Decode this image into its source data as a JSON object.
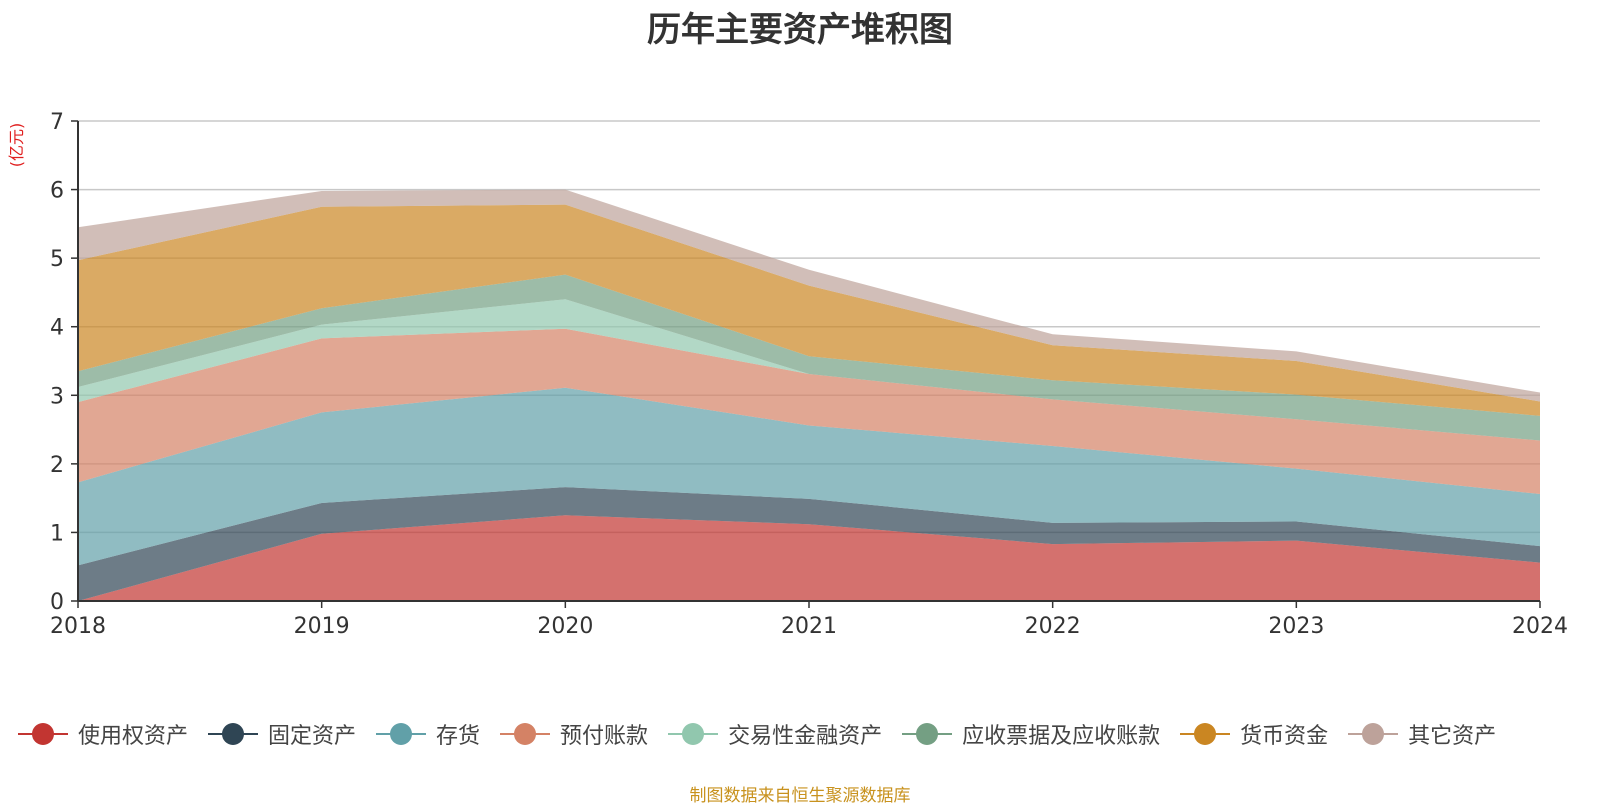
{
  "chart_data": {
    "type": "area",
    "stacked": true,
    "title": "历年主要资产堆积图",
    "unit_label": "(亿元)",
    "x": [
      "2018",
      "2019",
      "2020",
      "2021",
      "2022",
      "2023",
      "2024"
    ],
    "ylim": [
      0,
      7
    ],
    "yticks": [
      "0",
      "1",
      "2",
      "3",
      "4",
      "5",
      "6",
      "7"
    ],
    "grid": true,
    "legend_position": "bottom",
    "series": [
      {
        "name": "使用权资产",
        "color": "#c23531",
        "values": [
          0.0,
          0.98,
          1.25,
          1.12,
          0.83,
          0.88,
          0.56
        ]
      },
      {
        "name": "固定资产",
        "color": "#2f4554",
        "values": [
          0.52,
          0.45,
          0.41,
          0.37,
          0.31,
          0.28,
          0.24
        ]
      },
      {
        "name": "存货",
        "color": "#61a0a8",
        "values": [
          1.21,
          1.32,
          1.45,
          1.07,
          1.12,
          0.77,
          0.76
        ]
      },
      {
        "name": "预付账款",
        "color": "#d48265",
        "values": [
          1.17,
          1.08,
          0.86,
          0.75,
          0.68,
          0.72,
          0.78
        ]
      },
      {
        "name": "交易性金融资产",
        "color": "#91c7ae",
        "values": [
          0.22,
          0.2,
          0.43,
          0.0,
          0.0,
          0.0,
          0.0
        ]
      },
      {
        "name": "应收票据及应收账款",
        "color": "#749f83",
        "values": [
          0.23,
          0.24,
          0.36,
          0.26,
          0.28,
          0.36,
          0.36
        ]
      },
      {
        "name": "货币资金",
        "color": "#ca8622",
        "values": [
          1.62,
          1.48,
          1.02,
          1.03,
          0.51,
          0.49,
          0.21
        ]
      },
      {
        "name": "其它资产",
        "color": "#bda29a",
        "values": [
          0.48,
          0.23,
          0.22,
          0.23,
          0.16,
          0.14,
          0.13
        ]
      }
    ]
  },
  "footer": {
    "source_text": "制图数据来自恒生聚源数据库",
    "source_color": "#c8921e"
  }
}
